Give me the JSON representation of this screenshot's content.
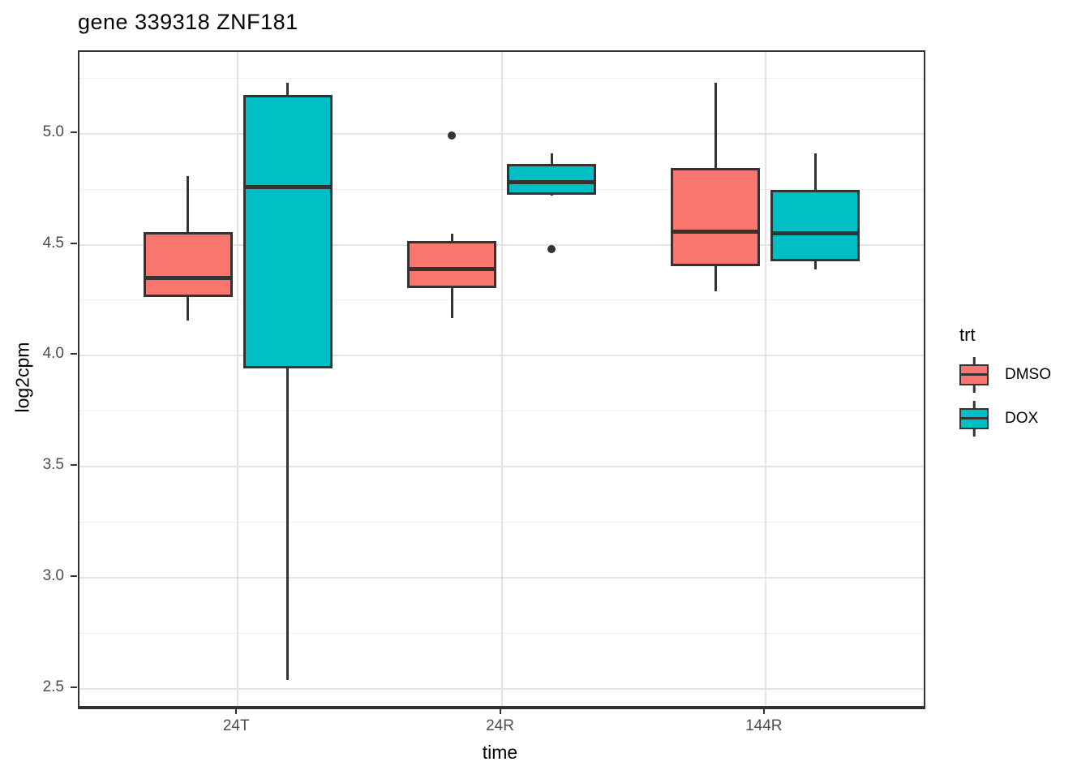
{
  "figure": {
    "background": "#FFFFFF"
  },
  "chart_data": {
    "type": "boxplot",
    "title": "gene 339318 ZNF181",
    "xlabel": "time",
    "ylabel": "log2cpm",
    "categories": [
      "24T",
      "24R",
      "144R"
    ],
    "y_axis": {
      "ticks": [
        {
          "v": 5.0,
          "label": "5.0"
        },
        {
          "v": 4.5,
          "label": "4.5"
        },
        {
          "v": 4.0,
          "label": "4.0"
        },
        {
          "v": 3.5,
          "label": "3.5"
        },
        {
          "v": 3.0,
          "label": "3.0"
        },
        {
          "v": 2.5,
          "label": "2.5"
        }
      ],
      "minor_step": 0.25,
      "range_shown": [
        2.42,
        5.37
      ]
    },
    "grid": "horizontal major+minor, vertical at category centers",
    "legend": {
      "title": "trt",
      "position": "right",
      "entries": [
        {
          "label": "DMSO",
          "color": "#F8766D"
        },
        {
          "label": "DOX",
          "color": "#00BFC4"
        }
      ]
    },
    "series": [
      {
        "name": "DMSO",
        "color": "#F8766D",
        "boxes": [
          {
            "category": "24T",
            "whisker_low": 4.16,
            "q1": 4.27,
            "median": 4.35,
            "q3": 4.55,
            "whisker_high": 4.81,
            "outliers": []
          },
          {
            "category": "24R",
            "whisker_low": 4.17,
            "q1": 4.31,
            "median": 4.39,
            "q3": 4.51,
            "whisker_high": 4.55,
            "outliers": [
              4.99
            ]
          },
          {
            "category": "144R",
            "whisker_low": 4.29,
            "q1": 4.41,
            "median": 4.56,
            "q3": 4.84,
            "whisker_high": 5.23,
            "outliers": []
          }
        ]
      },
      {
        "name": "DOX",
        "color": "#00BFC4",
        "boxes": [
          {
            "category": "24T",
            "whisker_low": 2.54,
            "q1": 3.95,
            "median": 4.76,
            "q3": 5.17,
            "whisker_high": 5.23,
            "outliers": []
          },
          {
            "category": "24R",
            "whisker_low": 4.72,
            "q1": 4.73,
            "median": 4.78,
            "q3": 4.86,
            "whisker_high": 4.91,
            "outliers": [
              4.48
            ]
          },
          {
            "category": "144R",
            "whisker_low": 4.39,
            "q1": 4.43,
            "median": 4.55,
            "q3": 4.74,
            "whisker_high": 4.91,
            "outliers": []
          }
        ]
      }
    ]
  },
  "colors": {
    "box_border": "#333333",
    "grid_major": "#E4E4E4",
    "grid_minor": "#EFEFEF",
    "tick_label": "#4D4D4D",
    "panel_border": "#333333",
    "outlier": "#333333"
  }
}
